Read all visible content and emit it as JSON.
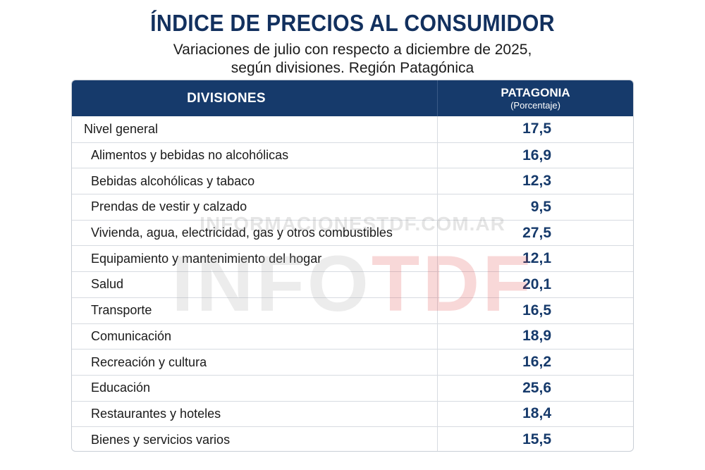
{
  "chart_data": {
    "type": "table",
    "title": "ÍNDICE DE PRECIOS AL CONSUMIDOR",
    "subtitle_line1": "Variaciones de julio con respecto a diciembre de 2025,",
    "subtitle_line2": "según divisiones. Región Patagónica",
    "columns": {
      "divisions_header": "DIVISIONES",
      "value_header": "PATAGONIA",
      "value_unit": "(Porcentaje)"
    },
    "rows": [
      {
        "label": "Nivel general",
        "value": "17,5"
      },
      {
        "label": "Alimentos y bebidas no alcohólicas",
        "value": "16,9"
      },
      {
        "label": "Bebidas alcohólicas y tabaco",
        "value": "12,3"
      },
      {
        "label": "Prendas de vestir y calzado",
        "value": "9,5"
      },
      {
        "label": "Vivienda, agua, electricidad, gas y otros combustibles",
        "value": "27,5"
      },
      {
        "label": "Equipamiento y mantenimiento del hogar",
        "value": "12,1"
      },
      {
        "label": "Salud",
        "value": "20,1"
      },
      {
        "label": "Transporte",
        "value": "16,5"
      },
      {
        "label": "Comunicación",
        "value": "18,9"
      },
      {
        "label": "Recreación y cultura",
        "value": "16,2"
      },
      {
        "label": "Educación",
        "value": "25,6"
      },
      {
        "label": "Restaurantes y hoteles",
        "value": "18,4"
      },
      {
        "label": "Bienes y servicios varios",
        "value": "15,5"
      }
    ]
  },
  "watermark": {
    "url_text": "INFORMACIONESTDF.COM.AR",
    "logo_part1": "INFO",
    "logo_part2": "TDF"
  },
  "colors": {
    "header_bg": "#163a6b",
    "title": "#12305e",
    "value_text": "#163a6b"
  }
}
